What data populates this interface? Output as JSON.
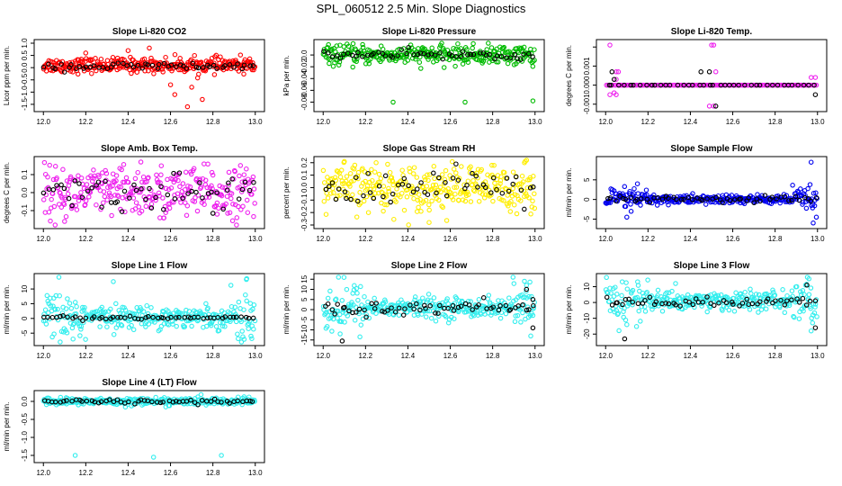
{
  "figure": {
    "title": "SPL_060512  2.5 Min. Slope Diagnostics"
  },
  "chart_data": [
    {
      "type": "scatter",
      "title": "Slope Li-820 CO2",
      "ylabel": "Licor ppm per min.",
      "xlim": [
        12.0,
        13.0
      ],
      "ylim": [
        -1.65,
        1.0
      ],
      "yticks": [
        1.0,
        0.5,
        0.0,
        -0.5,
        -1.0,
        -1.5
      ],
      "ytick_labels": [
        "1.0",
        "0.5",
        "0.0",
        "-0.5",
        "-1.0",
        "-1.5"
      ],
      "xticks": [
        12.0,
        12.2,
        12.4,
        12.6,
        12.8,
        13.0
      ],
      "xtick_labels": [
        "12.0",
        "12.2",
        "12.4",
        "12.6",
        "12.8",
        "13.0"
      ],
      "color": "#ff0000",
      "series": [
        {
          "name": "all",
          "color": "#ff0000",
          "n": 320,
          "center": 0.1,
          "spread": 0.15,
          "outliers": [
            [
              12.62,
              -1.1
            ],
            [
              12.68,
              -1.6
            ],
            [
              12.7,
              -0.8
            ],
            [
              12.6,
              -0.7
            ],
            [
              12.4,
              0.7
            ],
            [
              12.5,
              0.8
            ],
            [
              12.2,
              0.6
            ],
            [
              12.75,
              -1.3
            ]
          ]
        },
        {
          "name": "black",
          "color": "#000000",
          "n": 55,
          "center": 0.05,
          "spread": 0.08
        }
      ]
    },
    {
      "type": "scatter",
      "title": "Slope Li-820 Pressure",
      "ylabel": "kPa per min.",
      "xlim": [
        12.0,
        13.0
      ],
      "ylim": [
        -0.09,
        0.02
      ],
      "yticks": [
        0.0,
        -0.02,
        -0.04,
        -0.06,
        -0.08
      ],
      "ytick_labels": [
        "0.0",
        "-0.02",
        "-0.04",
        "-0.06",
        "-0.08"
      ],
      "xticks": [
        12.0,
        12.2,
        12.4,
        12.6,
        12.8,
        13.0
      ],
      "xtick_labels": [
        "12.0",
        "12.2",
        "12.4",
        "12.6",
        "12.8",
        "13.0"
      ],
      "color": "#00bb00",
      "series": [
        {
          "name": "all",
          "color": "#00bb00",
          "n": 320,
          "center": 0.0,
          "spread": 0.008,
          "outliers": [
            [
              12.33,
              -0.08
            ],
            [
              12.67,
              -0.08
            ],
            [
              12.99,
              -0.078
            ]
          ]
        },
        {
          "name": "black",
          "color": "#000000",
          "n": 55,
          "center": 0.0,
          "spread": 0.004
        }
      ]
    },
    {
      "type": "scatter",
      "title": "Slope Li-820 Temp.",
      "ylabel": "degrees C per min.",
      "xlim": [
        12.0,
        13.0
      ],
      "ylim": [
        -0.0012,
        0.0022
      ],
      "yticks": [
        0.002,
        0.001,
        0.0,
        -0.001
      ],
      "ytick_labels": [
        "",
        "0.001",
        "0.000",
        "-0.001"
      ],
      "xticks": [
        12.0,
        12.2,
        12.4,
        12.6,
        12.8,
        13.0
      ],
      "xtick_labels": [
        "12.0",
        "12.2",
        "12.4",
        "12.6",
        "12.8",
        "13.0"
      ],
      "color": "#ee22ee",
      "series": [
        {
          "name": "all",
          "color": "#ee22ee",
          "n": 150,
          "center": 0.0,
          "spread": 0.0,
          "outliers": [
            [
              12.02,
              0.0021
            ],
            [
              12.05,
              0.0007
            ],
            [
              12.06,
              0.0007
            ],
            [
              12.02,
              -0.0005
            ],
            [
              12.05,
              -0.0005
            ],
            [
              12.5,
              0.0021
            ],
            [
              12.51,
              0.0021
            ],
            [
              12.52,
              0.0007
            ],
            [
              12.49,
              -0.0011
            ],
            [
              12.51,
              -0.0011
            ],
            [
              12.97,
              0.0004
            ],
            [
              12.99,
              0.0004
            ],
            [
              12.05,
              0.0003
            ],
            [
              12.04,
              -0.0004
            ]
          ]
        },
        {
          "name": "black",
          "color": "#000000",
          "n": 40,
          "center": 0.0,
          "spread": 0.0,
          "outliers": [
            [
              12.03,
              0.0007
            ],
            [
              12.45,
              0.0007
            ],
            [
              12.49,
              0.0007
            ],
            [
              12.52,
              -0.0011
            ],
            [
              12.99,
              -0.0005
            ],
            [
              12.04,
              0.0003
            ]
          ]
        }
      ]
    },
    {
      "type": "scatter",
      "title": "Slope Amb. Box Temp.",
      "ylabel": "degrees C per min.",
      "xlim": [
        12.0,
        13.0
      ],
      "ylim": [
        -0.18,
        0.18
      ],
      "yticks": [
        0.1,
        0.0,
        -0.1
      ],
      "ytick_labels": [
        "0.1",
        "0.0",
        "-0.1"
      ],
      "xticks": [
        12.0,
        12.2,
        12.4,
        12.6,
        12.8,
        13.0
      ],
      "xtick_labels": [
        "12.0",
        "12.2",
        "12.4",
        "12.6",
        "12.8",
        "13.0"
      ],
      "color": "#ee22ee",
      "series": [
        {
          "name": "all",
          "color": "#ee22ee",
          "n": 320,
          "center": 0.0,
          "spread": 0.07,
          "outliers": [
            [
              12.46,
              0.17
            ],
            [
              12.1,
              -0.16
            ],
            [
              12.55,
              -0.14
            ],
            [
              12.82,
              -0.12
            ]
          ]
        },
        {
          "name": "black",
          "color": "#000000",
          "n": 55,
          "center": 0.0,
          "spread": 0.05
        }
      ]
    },
    {
      "type": "scatter",
      "title": "Slope Gas Stream RH",
      "ylabel": "percent per min.",
      "xlim": [
        12.0,
        13.0
      ],
      "ylim": [
        -0.3,
        0.22
      ],
      "yticks": [
        0.2,
        0.1,
        0.0,
        -0.1,
        -0.2,
        -0.3
      ],
      "ytick_labels": [
        "0.2",
        "0.1",
        "0.0",
        "-0.1",
        "-0.2",
        "-0.3"
      ],
      "xticks": [
        12.0,
        12.2,
        12.4,
        12.6,
        12.8,
        13.0
      ],
      "xtick_labels": [
        "12.0",
        "12.2",
        "12.4",
        "12.6",
        "12.8",
        "13.0"
      ],
      "color": "#ffff00",
      "series": [
        {
          "name": "all",
          "color": "#ffee00",
          "n": 330,
          "center": 0.0,
          "spread": 0.09,
          "outliers": [
            [
              12.1,
              0.21
            ],
            [
              12.25,
              0.2
            ],
            [
              12.5,
              -0.28
            ],
            [
              12.95,
              0.2
            ]
          ]
        },
        {
          "name": "black",
          "color": "#000000",
          "n": 55,
          "center": 0.0,
          "spread": 0.07
        }
      ]
    },
    {
      "type": "scatter",
      "title": "Slope Sample Flow",
      "ylabel": "ml/min per min.",
      "xlim": [
        12.0,
        13.0
      ],
      "ylim": [
        -6.5,
        10.0
      ],
      "yticks": [
        5,
        0,
        -5
      ],
      "ytick_labels": [
        "5",
        "0",
        "-5"
      ],
      "xticks": [
        12.0,
        12.2,
        12.4,
        12.6,
        12.8,
        13.0
      ],
      "xtick_labels": [
        "12.0",
        "12.2",
        "12.4",
        "12.6",
        "12.8",
        "13.0"
      ],
      "color": "#0000ee",
      "series": [
        {
          "name": "all",
          "color": "#0000ee",
          "n": 320,
          "center": 0.0,
          "spread": 0.6,
          "wide_edges": true,
          "outliers": [
            [
              12.97,
              9.5
            ],
            [
              12.98,
              -6.0
            ],
            [
              12.1,
              -4.5
            ],
            [
              12.15,
              4.0
            ]
          ]
        },
        {
          "name": "black",
          "color": "#000000",
          "n": 55,
          "center": 0.0,
          "spread": 0.4
        }
      ]
    },
    {
      "type": "scatter",
      "title": "Slope Line 1 Flow",
      "ylabel": "ml/min per min.",
      "xlim": [
        12.0,
        13.0
      ],
      "ylim": [
        -8.0,
        14.0
      ],
      "yticks": [
        10,
        5,
        0,
        -5
      ],
      "ytick_labels": [
        "10",
        "5",
        "0",
        "-5"
      ],
      "xticks": [
        12.0,
        12.2,
        12.4,
        12.6,
        12.8,
        13.0
      ],
      "xtick_labels": [
        "12.0",
        "12.2",
        "12.4",
        "12.6",
        "12.8",
        "13.0"
      ],
      "color": "#33eeee",
      "series": [
        {
          "name": "all",
          "color": "#33eeee",
          "n": 320,
          "center": 0.5,
          "spread": 1.8,
          "wide_edges": true,
          "outliers": [
            [
              12.33,
              12.5
            ],
            [
              12.96,
              13.5
            ],
            [
              12.14,
              -7.0
            ],
            [
              12.98,
              -6.0
            ]
          ]
        },
        {
          "name": "black",
          "color": "#000000",
          "n": 55,
          "center": 0.3,
          "spread": 0.3
        }
      ]
    },
    {
      "type": "scatter",
      "title": "Slope Line 2 Flow",
      "ylabel": "ml/min per min.",
      "xlim": [
        12.0,
        13.0
      ],
      "ylim": [
        -16.0,
        16.0
      ],
      "yticks": [
        15,
        10,
        5,
        0,
        -5,
        -10,
        -15
      ],
      "ytick_labels": [
        "15",
        "10",
        "5",
        "0",
        "-5",
        "-10",
        "-15"
      ],
      "xticks": [
        12.0,
        12.2,
        12.4,
        12.6,
        12.8,
        13.0
      ],
      "xtick_labels": [
        "12.0",
        "12.2",
        "12.4",
        "12.6",
        "12.8",
        "13.0"
      ],
      "color": "#33eeee",
      "series": [
        {
          "name": "all",
          "color": "#33eeee",
          "n": 320,
          "center": 1.0,
          "spread": 2.5,
          "wide_edges": true,
          "outliers": [
            [
              12.95,
              14.0
            ],
            [
              12.96,
              12.0
            ],
            [
              12.08,
              -12.0
            ],
            [
              12.98,
              -13.0
            ]
          ]
        },
        {
          "name": "black",
          "color": "#000000",
          "n": 60,
          "center": 0.5,
          "spread": 1.5,
          "outliers": [
            [
              12.09,
              -15.5
            ],
            [
              12.99,
              -9.0
            ],
            [
              12.99,
              5.0
            ],
            [
              12.96,
              10.0
            ]
          ]
        }
      ]
    },
    {
      "type": "scatter",
      "title": "Slope Line 3 Flow",
      "ylabel": "ml/min per min.",
      "xlim": [
        12.0,
        13.0
      ],
      "ylim": [
        -25.0,
        16.0
      ],
      "yticks": [
        10,
        0,
        -10,
        -20
      ],
      "ytick_labels": [
        "10",
        "0",
        "-10",
        "-20"
      ],
      "xticks": [
        12.0,
        12.2,
        12.4,
        12.6,
        12.8,
        13.0
      ],
      "xtick_labels": [
        "12.0",
        "12.2",
        "12.4",
        "12.6",
        "12.8",
        "13.0"
      ],
      "color": "#33eeee",
      "series": [
        {
          "name": "all",
          "color": "#33eeee",
          "n": 320,
          "center": 1.0,
          "spread": 3.0,
          "wide_edges": true,
          "outliers": [
            [
              12.96,
              15.0
            ],
            [
              12.33,
              12.0
            ],
            [
              12.1,
              -14.0
            ],
            [
              12.97,
              -18.0
            ]
          ]
        },
        {
          "name": "black",
          "color": "#000000",
          "n": 55,
          "center": 0.0,
          "spread": 1.5,
          "outliers": [
            [
              12.09,
              -23.0
            ],
            [
              12.99,
              -16.0
            ],
            [
              12.95,
              11.0
            ]
          ]
        }
      ]
    },
    {
      "type": "scatter",
      "title": "Slope Line 4 (LT) Flow",
      "ylabel": "ml/min per min.",
      "xlim": [
        12.0,
        13.0
      ],
      "ylim": [
        -1.6,
        0.2
      ],
      "yticks": [
        0.0,
        -0.5,
        -1.0,
        -1.5
      ],
      "ytick_labels": [
        "0.0",
        "-0.5",
        "-1.0",
        "-1.5"
      ],
      "xticks": [
        12.0,
        12.2,
        12.4,
        12.6,
        12.8,
        13.0
      ],
      "xtick_labels": [
        "12.0",
        "12.2",
        "12.4",
        "12.6",
        "12.8",
        "13.0"
      ],
      "color": "#33eeee",
      "series": [
        {
          "name": "all",
          "color": "#33eeee",
          "n": 330,
          "center": 0.0,
          "spread": 0.05,
          "outliers": [
            [
              12.15,
              -1.5
            ],
            [
              12.52,
              -1.55
            ],
            [
              12.84,
              -1.5
            ]
          ]
        },
        {
          "name": "black",
          "color": "#000000",
          "n": 55,
          "center": 0.0,
          "spread": 0.03
        }
      ]
    }
  ]
}
